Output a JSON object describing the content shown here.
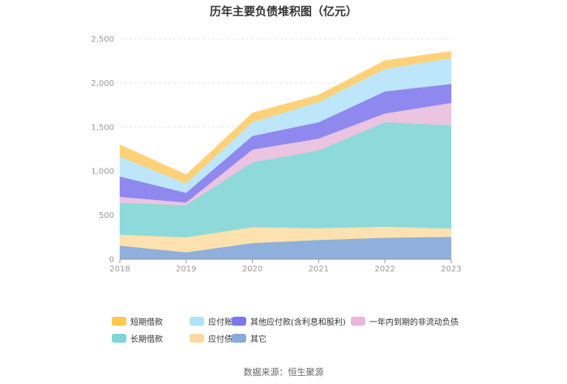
{
  "chart_data": {
    "type": "area",
    "stacked": true,
    "title": "历年主要负债堆积图（亿元）",
    "x": [
      "2018",
      "2019",
      "2020",
      "2021",
      "2022",
      "2023"
    ],
    "y_ticks": [
      "0",
      "500",
      "1,000",
      "1,500",
      "2,000",
      "2,500"
    ],
    "ylim": [
      0,
      2500
    ],
    "grid": true,
    "legend_position": "bottom",
    "series": [
      {
        "name": "其它",
        "color": "#8fb0dc",
        "values": [
          155,
          80,
          185,
          220,
          245,
          255
        ]
      },
      {
        "name": "应付债券",
        "color": "#fde2b0",
        "values": [
          125,
          170,
          180,
          135,
          125,
          95
        ]
      },
      {
        "name": "长期借款",
        "color": "#8ed9d9",
        "values": [
          360,
          365,
          735,
          880,
          1185,
          1170
        ]
      },
      {
        "name": "一年内到期的非流动负债",
        "color": "#eac4e0",
        "values": [
          70,
          30,
          145,
          135,
          100,
          255
        ]
      },
      {
        "name": "其他应付款(含利息和股利)",
        "color": "#8f88ee",
        "values": [
          230,
          110,
          155,
          185,
          250,
          215
        ]
      },
      {
        "name": "应付账款",
        "color": "#bde6fb",
        "values": [
          225,
          105,
          155,
          230,
          255,
          295
        ]
      },
      {
        "name": "短期借款",
        "color": "#ffd27a",
        "values": [
          135,
          100,
          105,
          80,
          95,
          75
        ]
      }
    ]
  },
  "legend_order": [
    {
      "name": "短期借款",
      "color": "#ffc94d"
    },
    {
      "name": "应付账款",
      "color": "#aee3fb"
    },
    {
      "name": "其他应付款(含利息和股利)",
      "color": "#7b76f0"
    },
    {
      "name": "一年内到期的非流动负债",
      "color": "#e8b6da"
    },
    {
      "name": "长期借款",
      "color": "#7ed6d6"
    },
    {
      "name": "应付债券",
      "color": "#fdd9a0"
    },
    {
      "name": "其它",
      "color": "#8aaadb"
    }
  ],
  "source": "数据来源：恒生聚源"
}
